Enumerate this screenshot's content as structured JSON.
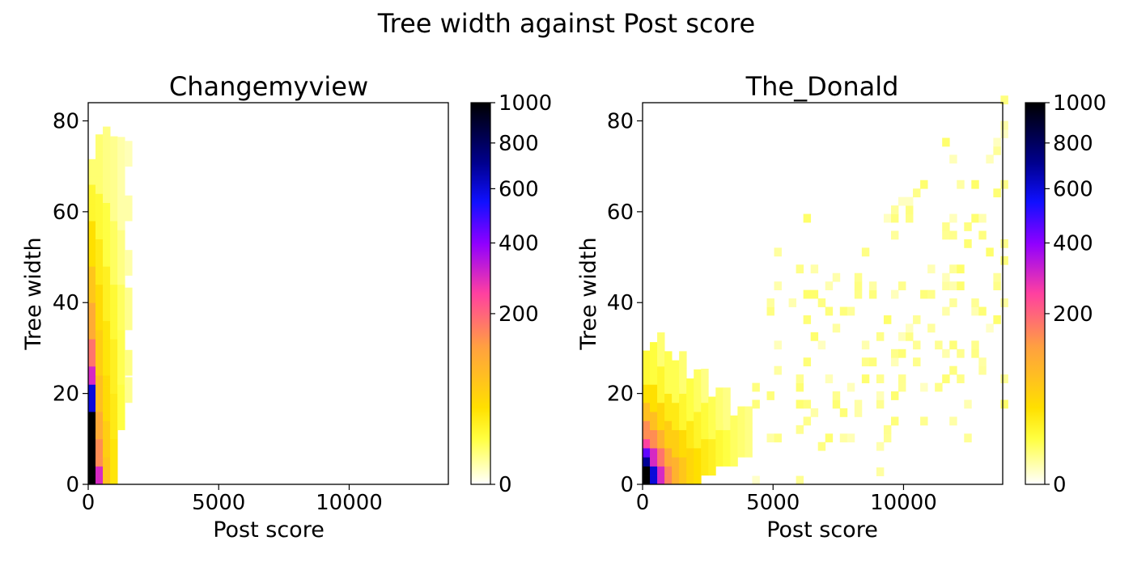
{
  "figure": {
    "suptitle": "Tree width against Post score"
  },
  "chart_data": [
    {
      "type": "heatmap",
      "title": "Changemyview",
      "xlabel": "Post score",
      "ylabel": "Tree width",
      "xlim": [
        0,
        13800
      ],
      "ylim": [
        0,
        84
      ],
      "xticks": [
        0,
        5000,
        10000
      ],
      "yticks": [
        0,
        20,
        40,
        60,
        80
      ],
      "bin_size": [
        280,
        1.86
      ],
      "colorbar": {
        "ticks": [
          0,
          200,
          400,
          600,
          800,
          1000
        ],
        "scale": "power",
        "colormap": "gnuplot2_r"
      },
      "columns": [
        {
          "x0": 0,
          "cells": [
            [
              0,
              16,
              1000
            ],
            [
              16,
              22,
              600
            ],
            [
              22,
              26,
              300
            ],
            [
              26,
              32,
              180
            ],
            [
              32,
              40,
              110
            ],
            [
              40,
              48,
              70
            ],
            [
              48,
              58,
              40
            ],
            [
              58,
              66,
              20
            ],
            [
              66,
              70,
              8
            ]
          ]
        },
        {
          "x0": 280,
          "cells": [
            [
              0,
              4,
              300
            ],
            [
              4,
              10,
              150
            ],
            [
              10,
              16,
              110
            ],
            [
              16,
              24,
              80
            ],
            [
              24,
              34,
              60
            ],
            [
              34,
              44,
              45
            ],
            [
              44,
              54,
              30
            ],
            [
              54,
              64,
              18
            ],
            [
              64,
              77,
              8
            ]
          ]
        },
        {
          "x0": 560,
          "cells": [
            [
              0,
              6,
              70
            ],
            [
              6,
              14,
              60
            ],
            [
              14,
              24,
              45
            ],
            [
              24,
              36,
              35
            ],
            [
              36,
              48,
              25
            ],
            [
              48,
              62,
              14
            ],
            [
              62,
              77,
              6
            ]
          ]
        },
        {
          "x0": 840,
          "cells": [
            [
              0,
              10,
              35
            ],
            [
              10,
              20,
              30
            ],
            [
              20,
              32,
              25
            ],
            [
              32,
              44,
              18
            ],
            [
              44,
              58,
              10
            ],
            [
              58,
              75,
              5
            ]
          ]
        },
        {
          "x0": 1120,
          "cells": [
            [
              12,
              22,
              14
            ],
            [
              22,
              34,
              12
            ],
            [
              34,
              44,
              10
            ],
            [
              44,
              56,
              6
            ],
            [
              56,
              75,
              3
            ]
          ]
        },
        {
          "x0": 1400,
          "cells": [
            [
              18,
              22,
              5
            ],
            [
              24,
              28,
              6
            ],
            [
              34,
              42,
              5
            ],
            [
              46,
              50,
              3
            ],
            [
              58,
              62,
              3
            ],
            [
              70,
              75,
              2
            ]
          ]
        }
      ]
    },
    {
      "type": "heatmap",
      "title": "The_Donald",
      "xlabel": "Post score",
      "ylabel": "Tree width",
      "xlim": [
        0,
        13800
      ],
      "ylim": [
        0,
        84
      ],
      "xticks": [
        0,
        5000,
        10000
      ],
      "yticks": [
        0,
        20,
        40,
        60,
        80
      ],
      "bin_size": [
        280,
        1.86
      ],
      "colorbar": {
        "ticks": [
          0,
          200,
          400,
          600,
          800,
          1000
        ],
        "scale": "power",
        "colormap": "gnuplot2_r"
      },
      "core_columns": [
        {
          "x0": 0,
          "cells": [
            [
              0,
              4,
              1000
            ],
            [
              4,
              6,
              700
            ],
            [
              6,
              8,
              450
            ],
            [
              8,
              10,
              250
            ],
            [
              10,
              14,
              150
            ],
            [
              14,
              18,
              80
            ],
            [
              18,
              22,
              40
            ],
            [
              22,
              28,
              18
            ]
          ]
        },
        {
          "x0": 280,
          "cells": [
            [
              0,
              4,
              600
            ],
            [
              4,
              8,
              300
            ],
            [
              8,
              12,
              150
            ],
            [
              12,
              16,
              80
            ],
            [
              16,
              22,
              40
            ],
            [
              22,
              30,
              15
            ]
          ]
        },
        {
          "x0": 560,
          "cells": [
            [
              0,
              4,
              300
            ],
            [
              4,
              8,
              180
            ],
            [
              8,
              12,
              100
            ],
            [
              12,
              18,
              50
            ],
            [
              18,
              26,
              20
            ],
            [
              26,
              32,
              8
            ]
          ]
        },
        {
          "x0": 840,
          "cells": [
            [
              0,
              4,
              160
            ],
            [
              4,
              8,
              110
            ],
            [
              8,
              14,
              60
            ],
            [
              14,
              20,
              30
            ],
            [
              20,
              28,
              12
            ]
          ]
        },
        {
          "x0": 1120,
          "cells": [
            [
              0,
              6,
              100
            ],
            [
              6,
              12,
              60
            ],
            [
              12,
              18,
              30
            ],
            [
              18,
              26,
              12
            ]
          ]
        },
        {
          "x0": 1400,
          "cells": [
            [
              0,
              6,
              70
            ],
            [
              6,
              12,
              45
            ],
            [
              12,
              20,
              20
            ],
            [
              20,
              28,
              8
            ]
          ]
        },
        {
          "x0": 1680,
          "cells": [
            [
              0,
              8,
              50
            ],
            [
              8,
              14,
              30
            ],
            [
              14,
              22,
              14
            ]
          ]
        },
        {
          "x0": 1960,
          "cells": [
            [
              0,
              8,
              40
            ],
            [
              8,
              16,
              22
            ],
            [
              16,
              24,
              10
            ]
          ]
        },
        {
          "x0": 2240,
          "cells": [
            [
              2,
              10,
              30
            ],
            [
              10,
              18,
              16
            ],
            [
              18,
              24,
              6
            ]
          ]
        },
        {
          "x0": 2520,
          "cells": [
            [
              2,
              10,
              25
            ],
            [
              10,
              18,
              12
            ]
          ]
        },
        {
          "x0": 2800,
          "cells": [
            [
              4,
              12,
              18
            ],
            [
              12,
              20,
              8
            ]
          ]
        },
        {
          "x0": 3080,
          "cells": [
            [
              4,
              12,
              14
            ],
            [
              12,
              20,
              6
            ]
          ]
        },
        {
          "x0": 3360,
          "cells": [
            [
              4,
              14,
              10
            ]
          ]
        },
        {
          "x0": 3640,
          "cells": [
            [
              6,
              16,
              8
            ]
          ]
        },
        {
          "x0": 3920,
          "cells": [
            [
              6,
              16,
              6
            ]
          ]
        }
      ],
      "scatter_region": {
        "x": [
          3000,
          13800
        ],
        "y": [
          0,
          84
        ],
        "value": 1
      }
    }
  ]
}
